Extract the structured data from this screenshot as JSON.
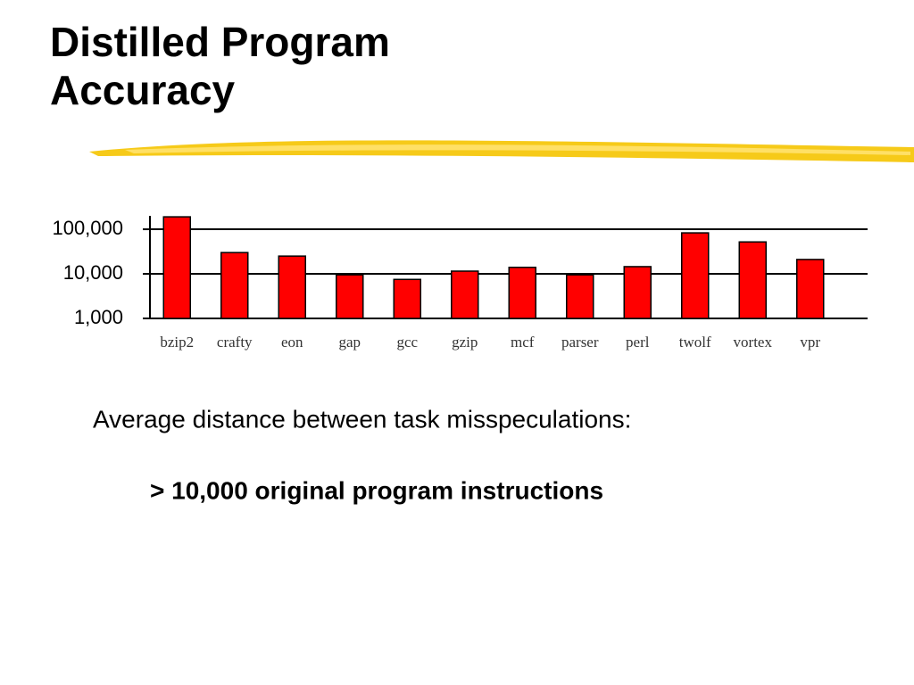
{
  "slide_title": "Distilled Program Accuracy",
  "body_text": "Average distance between task misspeculations:",
  "highlight_text": "> 10,000 original program instructions",
  "chart_data": {
    "type": "bar",
    "categories": [
      "bzip2",
      "crafty",
      "eon",
      "gap",
      "gcc",
      "gzip",
      "mcf",
      "parser",
      "perl",
      "twolf",
      "vortex",
      "vpr"
    ],
    "values": [
      190000,
      30000,
      25000,
      9500,
      7500,
      11500,
      14000,
      9500,
      14500,
      83000,
      52000,
      21000
    ],
    "color": "#ff0000",
    "log_scale": true,
    "ylim": [
      1000,
      200000
    ],
    "yticks": [
      {
        "value": 1000,
        "label": "1,000"
      },
      {
        "value": 10000,
        "label": "10,000"
      },
      {
        "value": 100000,
        "label": "100,000"
      }
    ],
    "grid": true
  }
}
